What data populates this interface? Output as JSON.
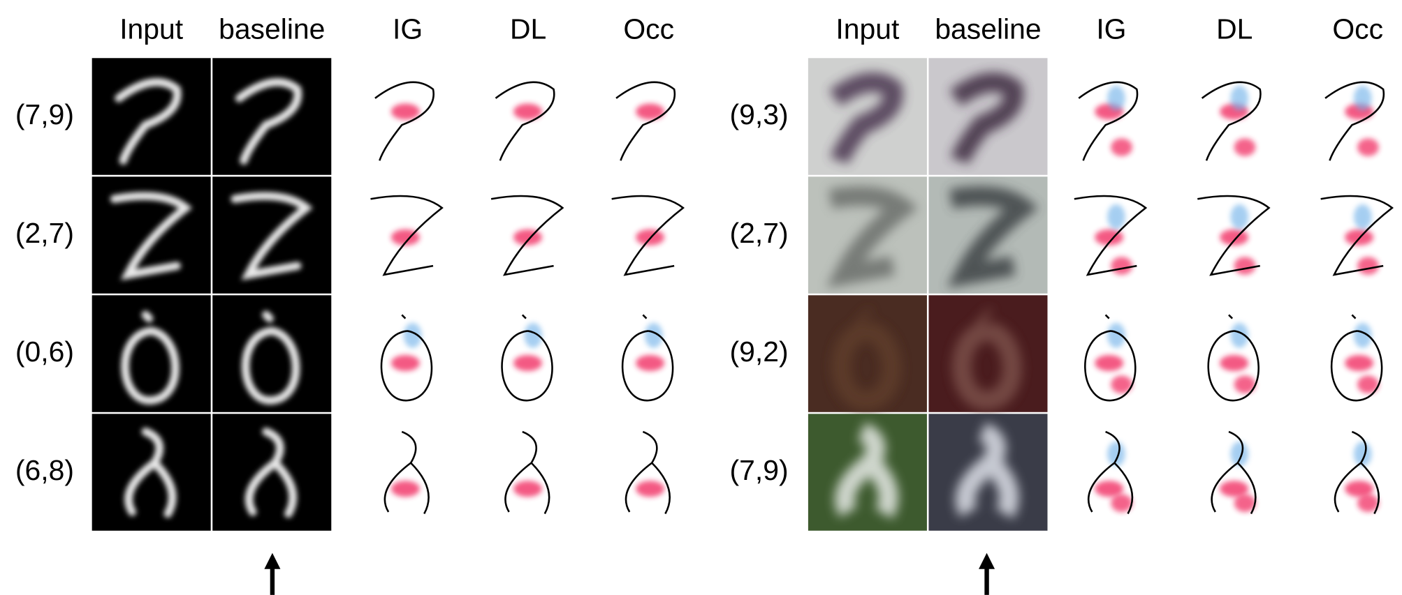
{
  "panels": [
    {
      "columns": [
        "Input",
        "baseline",
        "IG",
        "DL",
        "Occ"
      ],
      "rows": [
        "(7,9)",
        "(2,7)",
        "(0,6)",
        "(6,8)"
      ]
    },
    {
      "columns": [
        "Input",
        "baseline",
        "IG",
        "DL",
        "Occ"
      ],
      "rows": [
        "(9,3)",
        "(2,7)",
        "(9,2)",
        "(7,9)"
      ]
    }
  ]
}
